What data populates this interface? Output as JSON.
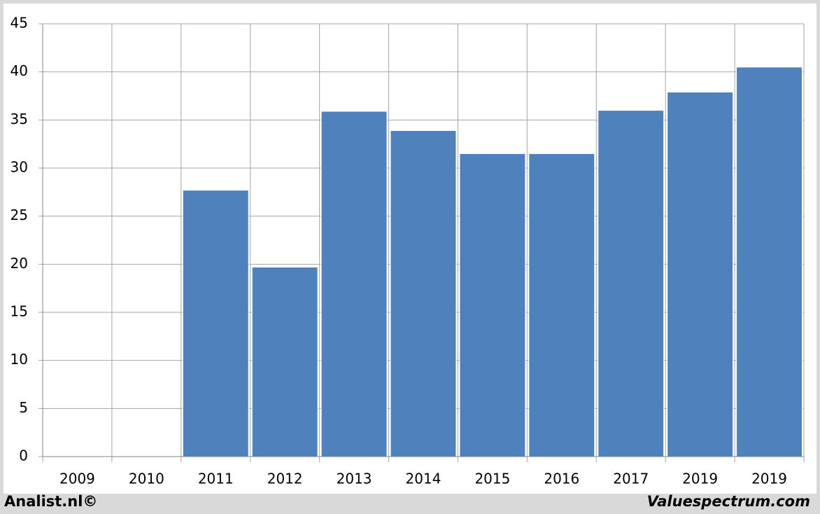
{
  "chart_data": {
    "type": "bar",
    "categories": [
      "2009",
      "2010",
      "2011",
      "2012",
      "2013",
      "2014",
      "2015",
      "2016",
      "2017",
      "2019",
      "2019"
    ],
    "values": [
      null,
      null,
      27.7,
      19.7,
      35.9,
      33.9,
      31.5,
      31.5,
      36.0,
      37.9,
      40.5
    ],
    "color": "#4f81bd",
    "ylim": [
      0,
      45
    ],
    "yticks": [
      0,
      5,
      10,
      15,
      20,
      25,
      30,
      35,
      40,
      45
    ],
    "grid": true
  },
  "footer": {
    "left": "Analist.nl©",
    "right": "Valuespectrum.com"
  }
}
